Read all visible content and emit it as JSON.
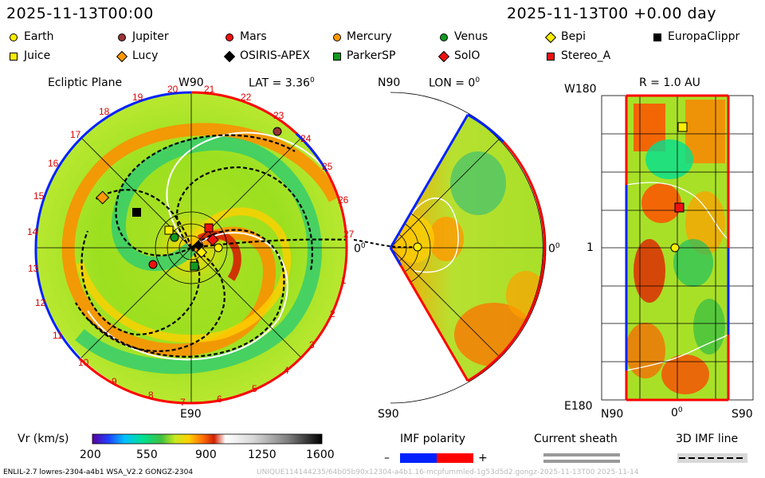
{
  "header": {
    "datetime_left": "2025-11-13T00:00",
    "datetime_right": "2025-11-13T00 +0.00 day"
  },
  "legend": {
    "row1": [
      {
        "label": "Earth",
        "shape": "circle",
        "color": "#ffee00"
      },
      {
        "label": "Jupiter",
        "shape": "circle",
        "color": "#993333"
      },
      {
        "label": "Mars",
        "shape": "circle",
        "color": "#ee1111"
      },
      {
        "label": "Mercury",
        "shape": "circle",
        "color": "#ff9900"
      },
      {
        "label": "Venus",
        "shape": "circle",
        "color": "#119922"
      },
      {
        "label": "Bepi",
        "shape": "diamond",
        "color": "#ffee00"
      },
      {
        "label": "EuropaClippr",
        "shape": "square",
        "color": "#000000"
      }
    ],
    "row2": [
      {
        "label": "Juice",
        "shape": "square",
        "color": "#ffee00"
      },
      {
        "label": "Lucy",
        "shape": "diamond",
        "color": "#ff9900"
      },
      {
        "label": "OSIRIS-APEX",
        "shape": "diamond",
        "color": "#000000"
      },
      {
        "label": "ParkerSP",
        "shape": "square",
        "color": "#119922"
      },
      {
        "label": "SolO",
        "shape": "diamond",
        "color": "#ee1111"
      },
      {
        "label": "Stereo_A",
        "shape": "square",
        "color": "#ee1111"
      }
    ]
  },
  "ecliptic_panel": {
    "title": "Ecliptic Plane",
    "top_label": "W90",
    "lat_label": "LAT = 3.36",
    "degree_sign": "0",
    "bottom_label": "E90",
    "right_label": "0",
    "carrington_labels": [
      "20",
      "21",
      "22",
      "23",
      "24",
      "25",
      "26",
      "27",
      "1",
      "2",
      "3",
      "4",
      "5",
      "6",
      "7",
      "8",
      "9",
      "10",
      "11",
      "12",
      "13",
      "14",
      "15",
      "16",
      "17",
      "18",
      "19"
    ]
  },
  "meridional_panel": {
    "top_label": "N90",
    "lon_label": "LON = 0",
    "degree_sign": "0",
    "bottom_label": "S90",
    "right_label": "0"
  },
  "radial_panel": {
    "r_label": "R = 1.0 AU",
    "top_left": "W180",
    "bottom_left": "E180",
    "mid_left": "1",
    "bottom_x_left": "N90",
    "bottom_x_mid": "0",
    "bottom_x_right": "S90",
    "degree_sign": "0"
  },
  "colorbar": {
    "title": "Vr (km/s)",
    "ticks": [
      "200",
      "550",
      "900",
      "1250",
      "1600"
    ],
    "range": [
      200,
      1600
    ]
  },
  "imf": {
    "title": "IMF polarity",
    "minus": "–",
    "plus": "+",
    "neg_color": "#0022ff",
    "pos_color": "#ff0000"
  },
  "current_sheath": {
    "title": "Current sheath"
  },
  "imf_line": {
    "title": "3D IMF line"
  },
  "footer": {
    "model": "ENLIL-2.7 lowres-2304-a4b1 WSA_V2.2 GONGZ-2304",
    "watermark": "UNIQUE114144235/64b05b90x12304-a4b1.16-mcpfummled-1g53d5d2.gongz-2025-11-13T00   2025-11-14"
  }
}
